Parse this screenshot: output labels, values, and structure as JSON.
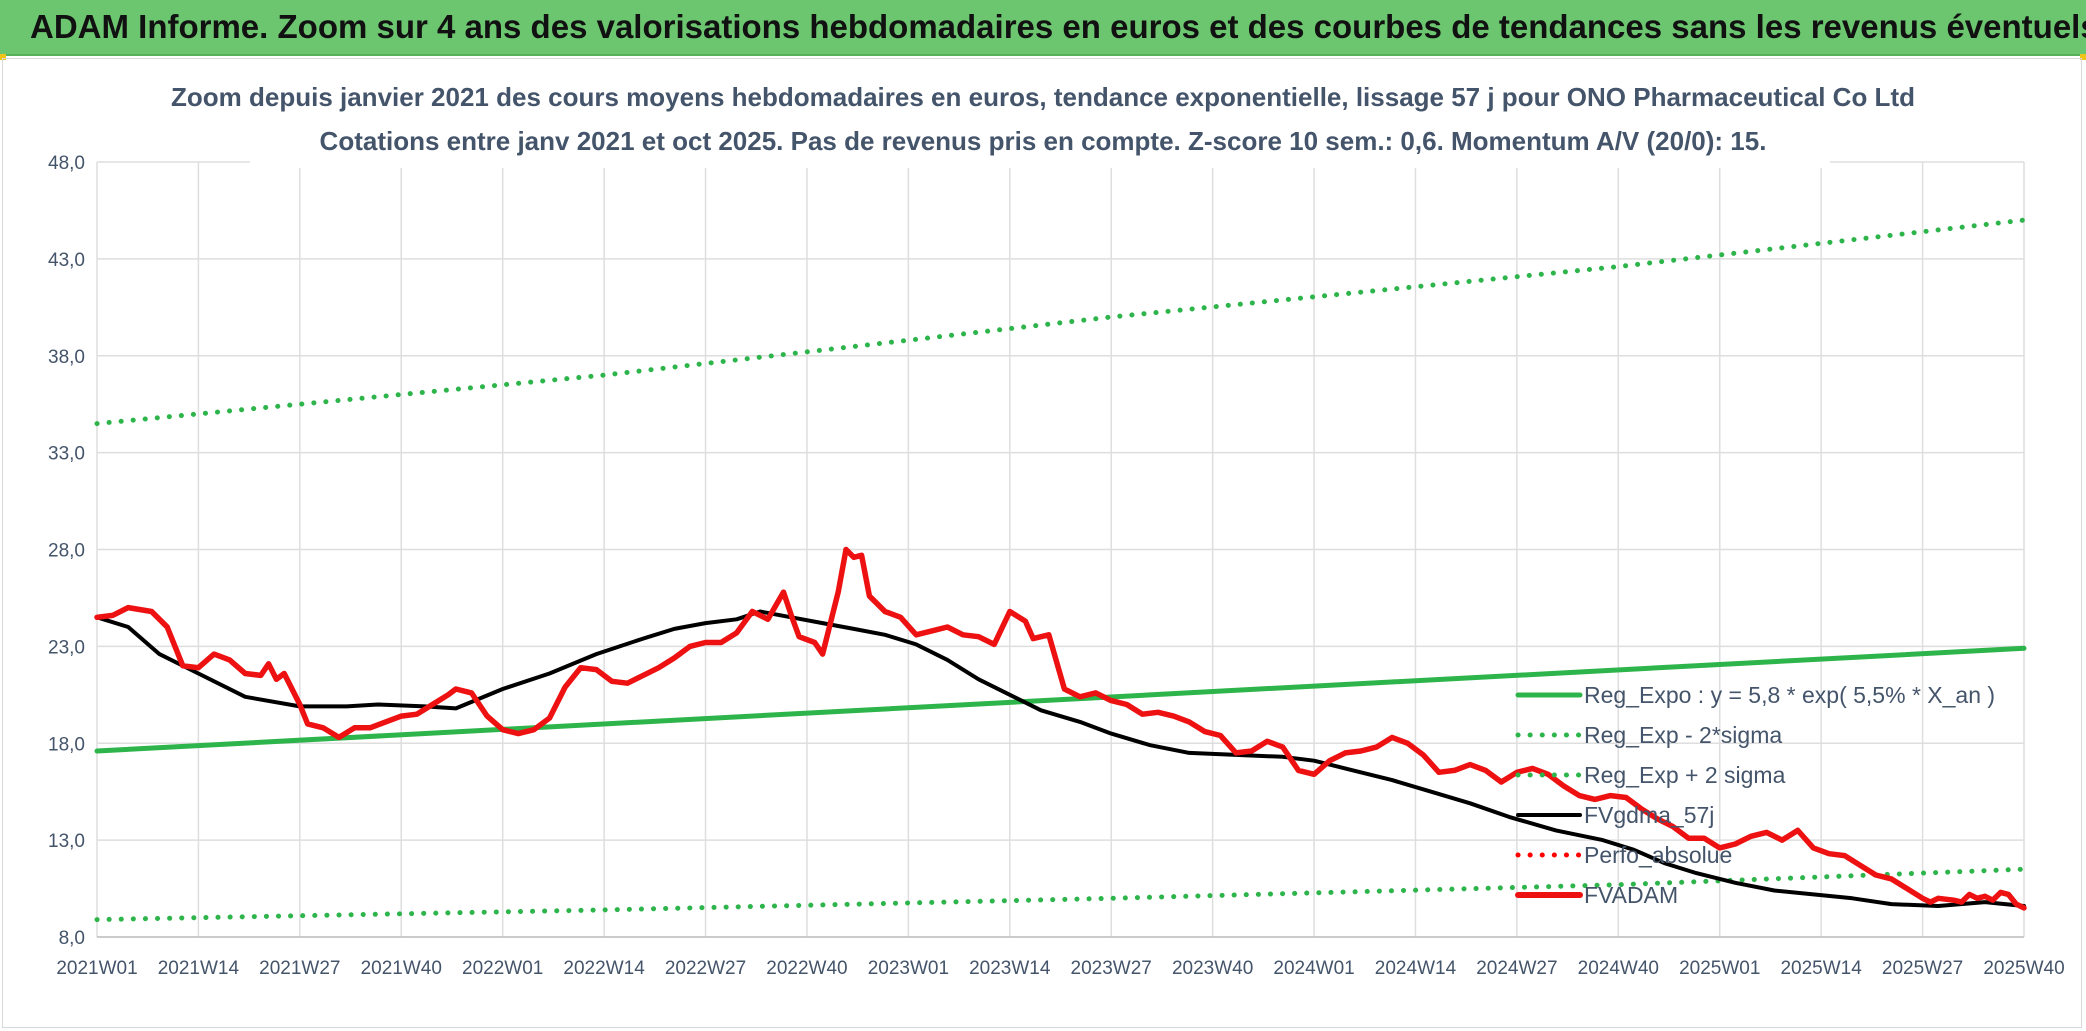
{
  "header": {
    "title": "ADAM Informe. Zoom sur 4 ans des valorisations hebdomadaires en euros et des courbes de tendances sans les revenus éventuels"
  },
  "chart_data": {
    "type": "line",
    "title": "Zoom depuis janvier 2021 des cours moyens hebdomadaires en euros, tendance exponentielle, lissage 57 j pour ONO Pharmaceutical Co Ltd",
    "subtitle": "Cotations entre janv 2021 et oct 2025. Pas de revenus pris en compte. Z-score 10 sem.: 0,6. Momentum A/V (20/0): 15.",
    "xlabel": "",
    "ylabel": "",
    "ylim": [
      8.0,
      48.0
    ],
    "y_ticks": [
      "8,0",
      "13,0",
      "18,0",
      "23,0",
      "28,0",
      "33,0",
      "38,0",
      "43,0",
      "48,0"
    ],
    "x_ticks": [
      "2021W01",
      "2021W14",
      "2021W27",
      "2021W40",
      "2022W01",
      "2022W14",
      "2022W27",
      "2022W40",
      "2023W01",
      "2023W14",
      "2023W27",
      "2023W40",
      "2024W01",
      "2024W14",
      "2024W27",
      "2024W40",
      "2025W01",
      "2025W14",
      "2025W27",
      "2025W40"
    ],
    "x_unit": "week index (0 = 2021W01, 13 weeks between labels)",
    "xlim": [
      0,
      247
    ],
    "grid": true,
    "legend_position": "right",
    "series": [
      {
        "name": "Reg_Expo : y = 5,8 * exp( 5,5% *  X_an )",
        "style": "solid",
        "color": "#2db44a",
        "points": [
          [
            0,
            17.6
          ],
          [
            247,
            22.9
          ]
        ]
      },
      {
        "name": "Reg_Exp - 2*sigma",
        "style": "dotted",
        "color": "#2db44a",
        "points": [
          [
            0,
            8.9
          ],
          [
            65,
            9.4
          ],
          [
            130,
            10.0
          ],
          [
            195,
            10.7
          ],
          [
            247,
            11.5
          ]
        ]
      },
      {
        "name": "Reg_Exp + 2 sigma",
        "style": "dotted",
        "color": "#2db44a",
        "points": [
          [
            0,
            34.5
          ],
          [
            65,
            37.0
          ],
          [
            130,
            40.0
          ],
          [
            195,
            42.6
          ],
          [
            247,
            45.0
          ]
        ]
      },
      {
        "name": "FVgdma_57j",
        "style": "solid",
        "color": "#000000",
        "points": [
          [
            0,
            24.5
          ],
          [
            4,
            24.0
          ],
          [
            8,
            22.6
          ],
          [
            13,
            21.6
          ],
          [
            19,
            20.4
          ],
          [
            26,
            19.9
          ],
          [
            32,
            19.9
          ],
          [
            36,
            20.0
          ],
          [
            42,
            19.9
          ],
          [
            46,
            19.8
          ],
          [
            52,
            20.8
          ],
          [
            58,
            21.6
          ],
          [
            64,
            22.6
          ],
          [
            70,
            23.4
          ],
          [
            74,
            23.9
          ],
          [
            78,
            24.2
          ],
          [
            82,
            24.4
          ],
          [
            85,
            24.8
          ],
          [
            89,
            24.5
          ],
          [
            93,
            24.2
          ],
          [
            97,
            23.9
          ],
          [
            101,
            23.6
          ],
          [
            105,
            23.1
          ],
          [
            109,
            22.3
          ],
          [
            113,
            21.3
          ],
          [
            117,
            20.5
          ],
          [
            121,
            19.7
          ],
          [
            126,
            19.1
          ],
          [
            130,
            18.5
          ],
          [
            135,
            17.9
          ],
          [
            140,
            17.5
          ],
          [
            146,
            17.4
          ],
          [
            152,
            17.3
          ],
          [
            156,
            17.1
          ],
          [
            161,
            16.6
          ],
          [
            166,
            16.1
          ],
          [
            171,
            15.5
          ],
          [
            176,
            14.9
          ],
          [
            181,
            14.2
          ],
          [
            187,
            13.5
          ],
          [
            193,
            13.0
          ],
          [
            197,
            12.5
          ],
          [
            201,
            11.8
          ],
          [
            205,
            11.3
          ],
          [
            210,
            10.8
          ],
          [
            215,
            10.4
          ],
          [
            220,
            10.2
          ],
          [
            225,
            10.0
          ],
          [
            230,
            9.7
          ],
          [
            236,
            9.6
          ],
          [
            242,
            9.8
          ],
          [
            247,
            9.6
          ]
        ]
      },
      {
        "name": "Perfo_absolue",
        "style": "dotted",
        "color": "#ff0000",
        "points": []
      },
      {
        "name": "FVADAM",
        "style": "solid",
        "color": "#ee1111",
        "points": [
          [
            0,
            24.5
          ],
          [
            2,
            24.6
          ],
          [
            4,
            25.0
          ],
          [
            7,
            24.8
          ],
          [
            9,
            24.0
          ],
          [
            11,
            22.0
          ],
          [
            13,
            21.9
          ],
          [
            15,
            22.6
          ],
          [
            17,
            22.3
          ],
          [
            19,
            21.6
          ],
          [
            21,
            21.5
          ],
          [
            22,
            22.1
          ],
          [
            23,
            21.3
          ],
          [
            24,
            21.6
          ],
          [
            26,
            20.0
          ],
          [
            27,
            19.0
          ],
          [
            29,
            18.8
          ],
          [
            31,
            18.3
          ],
          [
            33,
            18.8
          ],
          [
            35,
            18.8
          ],
          [
            37,
            19.1
          ],
          [
            39,
            19.4
          ],
          [
            41,
            19.5
          ],
          [
            43,
            20.0
          ],
          [
            45,
            20.5
          ],
          [
            46,
            20.8
          ],
          [
            48,
            20.6
          ],
          [
            50,
            19.4
          ],
          [
            52,
            18.7
          ],
          [
            54,
            18.5
          ],
          [
            56,
            18.7
          ],
          [
            58,
            19.3
          ],
          [
            60,
            20.9
          ],
          [
            62,
            21.9
          ],
          [
            64,
            21.8
          ],
          [
            66,
            21.2
          ],
          [
            68,
            21.1
          ],
          [
            70,
            21.5
          ],
          [
            72,
            21.9
          ],
          [
            74,
            22.4
          ],
          [
            76,
            23.0
          ],
          [
            78,
            23.2
          ],
          [
            80,
            23.2
          ],
          [
            82,
            23.7
          ],
          [
            84,
            24.8
          ],
          [
            86,
            24.4
          ],
          [
            88,
            25.8
          ],
          [
            89,
            24.6
          ],
          [
            90,
            23.5
          ],
          [
            92,
            23.2
          ],
          [
            93,
            22.6
          ],
          [
            95,
            25.8
          ],
          [
            96,
            28.0
          ],
          [
            97,
            27.6
          ],
          [
            98,
            27.7
          ],
          [
            99,
            25.6
          ],
          [
            101,
            24.8
          ],
          [
            103,
            24.5
          ],
          [
            105,
            23.6
          ],
          [
            107,
            23.8
          ],
          [
            109,
            24.0
          ],
          [
            111,
            23.6
          ],
          [
            113,
            23.5
          ],
          [
            115,
            23.1
          ],
          [
            117,
            24.8
          ],
          [
            119,
            24.3
          ],
          [
            120,
            23.4
          ],
          [
            122,
            23.6
          ],
          [
            124,
            20.8
          ],
          [
            126,
            20.4
          ],
          [
            128,
            20.6
          ],
          [
            130,
            20.2
          ],
          [
            132,
            20.0
          ],
          [
            134,
            19.5
          ],
          [
            136,
            19.6
          ],
          [
            138,
            19.4
          ],
          [
            140,
            19.1
          ],
          [
            142,
            18.6
          ],
          [
            144,
            18.4
          ],
          [
            146,
            17.5
          ],
          [
            148,
            17.6
          ],
          [
            150,
            18.1
          ],
          [
            152,
            17.8
          ],
          [
            154,
            16.6
          ],
          [
            156,
            16.4
          ],
          [
            158,
            17.1
          ],
          [
            160,
            17.5
          ],
          [
            162,
            17.6
          ],
          [
            164,
            17.8
          ],
          [
            166,
            18.3
          ],
          [
            168,
            18.0
          ],
          [
            170,
            17.4
          ],
          [
            172,
            16.5
          ],
          [
            174,
            16.6
          ],
          [
            176,
            16.9
          ],
          [
            178,
            16.6
          ],
          [
            180,
            16.0
          ],
          [
            182,
            16.5
          ],
          [
            184,
            16.7
          ],
          [
            186,
            16.4
          ],
          [
            188,
            15.8
          ],
          [
            190,
            15.3
          ],
          [
            192,
            15.1
          ],
          [
            194,
            15.3
          ],
          [
            196,
            15.2
          ],
          [
            198,
            14.6
          ],
          [
            200,
            14.1
          ],
          [
            202,
            13.7
          ],
          [
            204,
            13.1
          ],
          [
            206,
            13.1
          ],
          [
            208,
            12.6
          ],
          [
            210,
            12.8
          ],
          [
            212,
            13.2
          ],
          [
            214,
            13.4
          ],
          [
            216,
            13.0
          ],
          [
            218,
            13.5
          ],
          [
            220,
            12.6
          ],
          [
            222,
            12.3
          ],
          [
            224,
            12.2
          ],
          [
            226,
            11.7
          ],
          [
            228,
            11.2
          ],
          [
            230,
            11.0
          ],
          [
            232,
            10.5
          ],
          [
            234,
            10.0
          ],
          [
            235,
            9.8
          ],
          [
            236,
            10.0
          ],
          [
            238,
            9.9
          ],
          [
            239,
            9.8
          ],
          [
            240,
            10.2
          ],
          [
            241,
            10.0
          ],
          [
            242,
            10.1
          ],
          [
            243,
            9.9
          ],
          [
            244,
            10.3
          ],
          [
            245,
            10.2
          ],
          [
            246,
            9.7
          ],
          [
            247,
            9.5
          ]
        ]
      }
    ]
  }
}
